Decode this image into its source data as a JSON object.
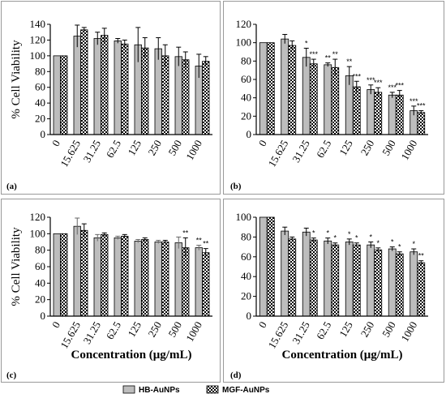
{
  "legend": [
    {
      "name": "HB-AuNPs",
      "style": "gray"
    },
    {
      "name": "MGF-AuNPs",
      "style": "checkered"
    }
  ],
  "chart_data": [
    {
      "type": "bar",
      "panel": "(a)",
      "ylabel": "% Cell Viability",
      "xlabel": "",
      "ylim": [
        0,
        140
      ],
      "yticks": [
        0,
        20,
        40,
        60,
        80,
        100,
        120,
        140
      ],
      "categories": [
        "0",
        "15.625",
        "31.25",
        "62.5",
        "125",
        "250",
        "500",
        "1000"
      ],
      "series": [
        {
          "name": "HB-AuNPs",
          "values": [
            100,
            125,
            122,
            119,
            114,
            109,
            99,
            87
          ],
          "errors": [
            0,
            14,
            8,
            3,
            22,
            14,
            12,
            15
          ],
          "significance": [
            "",
            "",
            "",
            "",
            "",
            "",
            "",
            ""
          ]
        },
        {
          "name": "MGF-AuNPs",
          "values": [
            100,
            133,
            126,
            115,
            110,
            100,
            95,
            93
          ],
          "errors": [
            0,
            3,
            9,
            5,
            13,
            14,
            10,
            6
          ],
          "significance": [
            "",
            "",
            "",
            "",
            "",
            "",
            "",
            ""
          ]
        }
      ]
    },
    {
      "type": "bar",
      "panel": "(b)",
      "ylabel": "",
      "xlabel": "",
      "ylim": [
        0,
        120
      ],
      "yticks": [
        0,
        20,
        40,
        60,
        80,
        100,
        120
      ],
      "categories": [
        "0",
        "15.625",
        "31.25",
        "62.5",
        "125",
        "250",
        "500",
        "1000"
      ],
      "series": [
        {
          "name": "HB-AuNPs",
          "values": [
            100,
            104,
            84,
            76,
            64,
            49,
            43,
            26
          ],
          "errors": [
            0,
            5,
            10,
            2,
            10,
            5,
            3,
            5
          ],
          "significance": [
            "",
            "",
            "*",
            "**",
            "**",
            "***",
            "***",
            "***"
          ]
        },
        {
          "name": "MGF-AuNPs",
          "values": [
            100,
            97,
            77,
            73,
            52,
            46,
            43,
            24
          ],
          "errors": [
            0,
            5,
            5,
            9,
            6,
            5,
            5,
            2
          ],
          "significance": [
            "",
            "",
            "***",
            "**",
            "***",
            "***",
            "***",
            "***"
          ]
        }
      ]
    },
    {
      "type": "bar",
      "panel": "(c)",
      "ylabel": "% Cell Viability",
      "xlabel": "Concentration (μg/mL)",
      "ylim": [
        0,
        120
      ],
      "yticks": [
        0,
        20,
        40,
        60,
        80,
        100,
        120
      ],
      "categories": [
        "0",
        "15.625",
        "31.25",
        "62.5",
        "125",
        "250",
        "500",
        "1000"
      ],
      "series": [
        {
          "name": "HB-AuNPs",
          "values": [
            100,
            109,
            95,
            95,
            91,
            90,
            89,
            83
          ],
          "errors": [
            0,
            10,
            4,
            2,
            2,
            2,
            7,
            3
          ],
          "significance": [
            "",
            "",
            "",
            "",
            "",
            "",
            "",
            "**"
          ]
        },
        {
          "name": "MGF-AuNPs",
          "values": [
            100,
            104,
            99,
            97,
            93,
            90,
            83,
            77
          ],
          "errors": [
            0,
            8,
            2,
            2,
            2,
            2,
            12,
            5
          ],
          "significance": [
            "",
            "",
            "",
            "",
            "",
            "",
            "**",
            "**"
          ]
        }
      ]
    },
    {
      "type": "bar",
      "panel": "(d)",
      "ylabel": "",
      "xlabel": "Concentration (μg/mL)",
      "ylim": [
        0,
        100
      ],
      "yticks": [
        0,
        20,
        40,
        60,
        80,
        100
      ],
      "categories": [
        "0",
        "15.625",
        "31.25",
        "62.5",
        "125",
        "250",
        "500",
        "1000"
      ],
      "series": [
        {
          "name": "HB-AuNPs",
          "values": [
            100,
            86,
            85,
            76,
            75,
            72,
            68,
            65
          ],
          "errors": [
            0,
            4,
            4,
            3,
            3,
            3,
            2,
            3
          ],
          "significance": [
            "",
            "",
            "",
            "*",
            "*",
            "*",
            "*",
            "*"
          ]
        },
        {
          "name": "MGF-AuNPs",
          "values": [
            100,
            78,
            77,
            72,
            72,
            67,
            63,
            54
          ],
          "errors": [
            0,
            2,
            2,
            2,
            2,
            2,
            2,
            2
          ],
          "significance": [
            "",
            "",
            "*",
            "*",
            "*",
            "*",
            "*",
            "**"
          ]
        }
      ]
    }
  ]
}
